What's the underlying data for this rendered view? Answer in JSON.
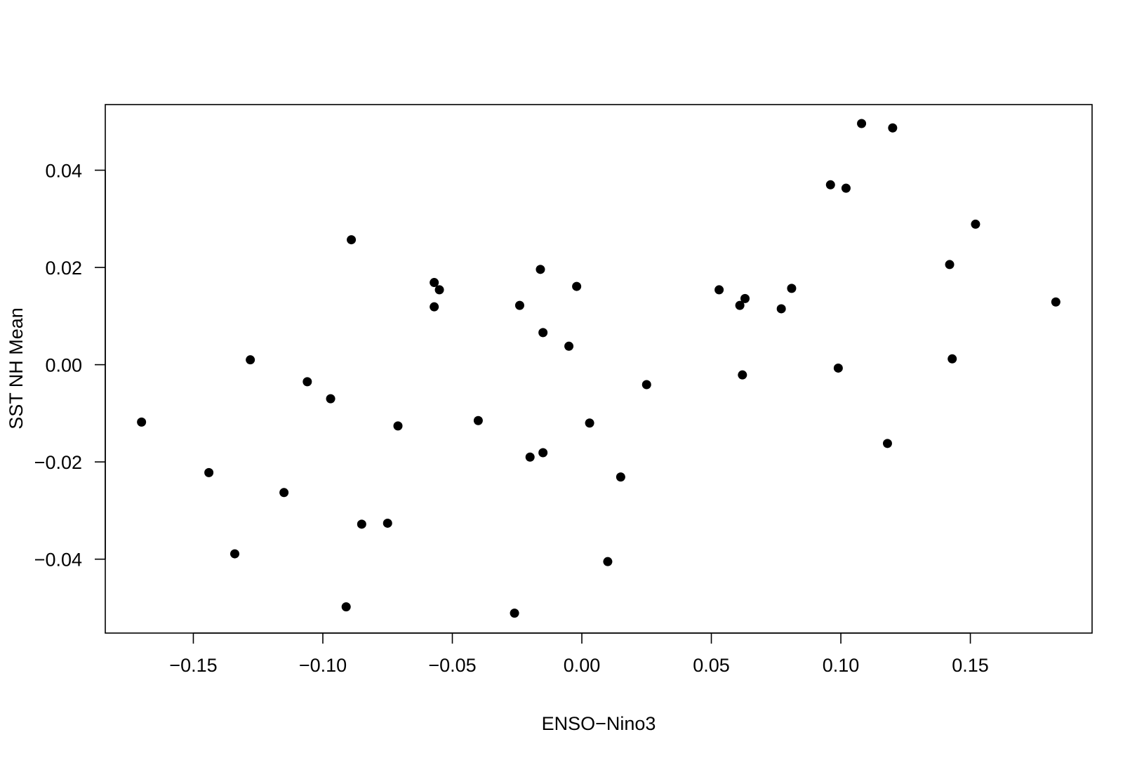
{
  "chart_data": {
    "type": "scatter",
    "title": "",
    "xlabel": "ENSO−Nino3",
    "ylabel": "SST NH Mean",
    "xlim": [
      -0.184,
      0.197
    ],
    "ylim": [
      -0.0552,
      0.0535
    ],
    "x_ticks": [
      {
        "value": -0.15,
        "label": "−0.15"
      },
      {
        "value": -0.1,
        "label": "−0.10"
      },
      {
        "value": -0.05,
        "label": "−0.05"
      },
      {
        "value": 0.0,
        "label": "0.00"
      },
      {
        "value": 0.05,
        "label": "0.05"
      },
      {
        "value": 0.1,
        "label": "0.10"
      },
      {
        "value": 0.15,
        "label": "0.15"
      }
    ],
    "y_ticks": [
      {
        "value": -0.04,
        "label": "−0.04"
      },
      {
        "value": -0.02,
        "label": "−0.02"
      },
      {
        "value": 0.0,
        "label": "0.00"
      },
      {
        "value": 0.02,
        "label": "0.02"
      },
      {
        "value": 0.04,
        "label": "0.04"
      }
    ],
    "grid": false,
    "legend": "none",
    "marker_color": "#000000",
    "points": [
      {
        "x": -0.17,
        "y": -0.0118
      },
      {
        "x": -0.144,
        "y": -0.0222
      },
      {
        "x": -0.134,
        "y": -0.0389
      },
      {
        "x": -0.128,
        "y": 0.001
      },
      {
        "x": -0.115,
        "y": -0.0263
      },
      {
        "x": -0.106,
        "y": -0.0035
      },
      {
        "x": -0.097,
        "y": -0.007
      },
      {
        "x": -0.091,
        "y": -0.0498
      },
      {
        "x": -0.089,
        "y": 0.0257
      },
      {
        "x": -0.085,
        "y": -0.0328
      },
      {
        "x": -0.075,
        "y": -0.0326
      },
      {
        "x": -0.071,
        "y": -0.0126
      },
      {
        "x": -0.057,
        "y": 0.0169
      },
      {
        "x": -0.057,
        "y": 0.0119
      },
      {
        "x": -0.055,
        "y": 0.0154
      },
      {
        "x": -0.04,
        "y": -0.0115
      },
      {
        "x": -0.026,
        "y": -0.0511
      },
      {
        "x": -0.024,
        "y": 0.0122
      },
      {
        "x": -0.02,
        "y": -0.019
      },
      {
        "x": -0.016,
        "y": 0.0196
      },
      {
        "x": -0.015,
        "y": 0.0066
      },
      {
        "x": -0.015,
        "y": -0.0181
      },
      {
        "x": -0.005,
        "y": 0.0038
      },
      {
        "x": -0.002,
        "y": 0.0161
      },
      {
        "x": 0.003,
        "y": -0.012
      },
      {
        "x": 0.01,
        "y": -0.0405
      },
      {
        "x": 0.015,
        "y": -0.0231
      },
      {
        "x": 0.025,
        "y": -0.0041
      },
      {
        "x": 0.053,
        "y": 0.0154
      },
      {
        "x": 0.061,
        "y": 0.0122
      },
      {
        "x": 0.062,
        "y": -0.0021
      },
      {
        "x": 0.063,
        "y": 0.0136
      },
      {
        "x": 0.077,
        "y": 0.0115
      },
      {
        "x": 0.081,
        "y": 0.0157
      },
      {
        "x": 0.096,
        "y": 0.037
      },
      {
        "x": 0.099,
        "y": -0.0007
      },
      {
        "x": 0.102,
        "y": 0.0363
      },
      {
        "x": 0.108,
        "y": 0.0496
      },
      {
        "x": 0.118,
        "y": -0.0162
      },
      {
        "x": 0.12,
        "y": 0.0487
      },
      {
        "x": 0.142,
        "y": 0.0206
      },
      {
        "x": 0.143,
        "y": 0.0012
      },
      {
        "x": 0.152,
        "y": 0.0289
      },
      {
        "x": 0.183,
        "y": 0.0129
      }
    ]
  }
}
